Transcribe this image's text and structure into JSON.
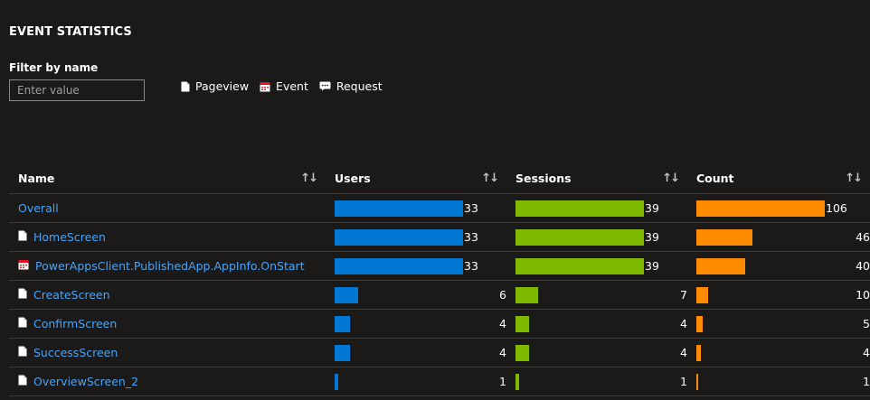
{
  "header": {
    "title": "EVENT STATISTICS"
  },
  "filter": {
    "label": "Filter by name",
    "placeholder": "Enter value"
  },
  "legend": [
    {
      "label": "Pageview",
      "icon": "page-icon"
    },
    {
      "label": "Event",
      "icon": "calendar-icon"
    },
    {
      "label": "Request",
      "icon": "chat-icon"
    }
  ],
  "table": {
    "columns": [
      {
        "label": "Name",
        "sort": "↑↓"
      },
      {
        "label": "Users",
        "sort": "↑↓"
      },
      {
        "label": "Sessions",
        "sort": "↑↓"
      },
      {
        "label": "Count",
        "sort": "↑↓"
      }
    ],
    "rows": [
      {
        "name": "Overall",
        "type": "none",
        "users": 33,
        "sessions": 39,
        "count": 106
      },
      {
        "name": "HomeScreen",
        "type": "pageview",
        "users": 33,
        "sessions": 39,
        "count": 46
      },
      {
        "name": "PowerAppsClient.PublishedApp.AppInfo.OnStart",
        "type": "event",
        "users": 33,
        "sessions": 39,
        "count": 40
      },
      {
        "name": "CreateScreen",
        "type": "pageview",
        "users": 6,
        "sessions": 7,
        "count": 10
      },
      {
        "name": "ConfirmScreen",
        "type": "pageview",
        "users": 4,
        "sessions": 4,
        "count": 5
      },
      {
        "name": "SuccessScreen",
        "type": "pageview",
        "users": 4,
        "sessions": 4,
        "count": 4
      },
      {
        "name": "OverviewScreen_2",
        "type": "pageview",
        "users": 1,
        "sessions": 1,
        "count": 1
      }
    ]
  },
  "colors": {
    "users": "#0078d4",
    "sessions": "#7fba00",
    "count": "#ff8c00",
    "link": "#4aa3f5"
  }
}
